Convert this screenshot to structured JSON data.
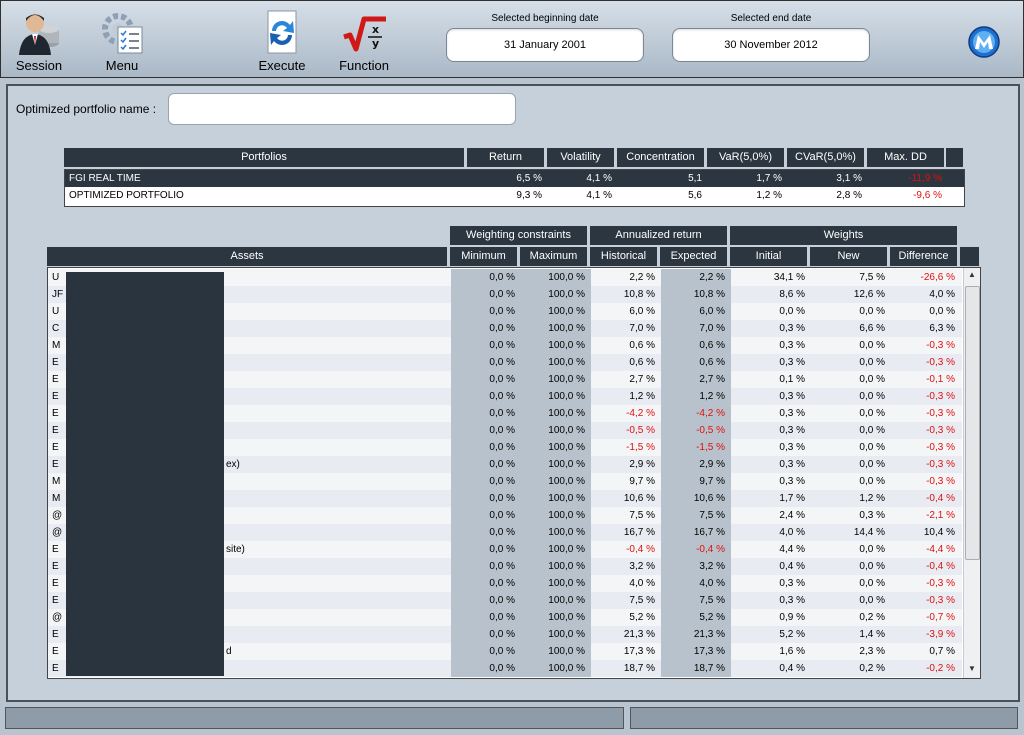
{
  "toolbar": {
    "session": {
      "label": "Session",
      "icon": "user-session-icon"
    },
    "menu": {
      "label": "Menu",
      "icon": "menu-gear-checklist-icon"
    },
    "execute": {
      "label": "Execute",
      "icon": "execute-refresh-icon"
    },
    "function": {
      "label": "Function",
      "icon": "function-sqrt-icon"
    },
    "begin_date_label": "Selected beginning date",
    "begin_date": "31 January 2001",
    "end_date_label": "Selected end date",
    "end_date": "30 November 2012",
    "logo_icon": "app-logo-icon"
  },
  "portfolio_name": {
    "label": "Optimized portfolio name :",
    "value": ""
  },
  "summary": {
    "headers": [
      "Portfolios",
      "Return",
      "Volatility",
      "Concentration",
      "VaR(5,0%)",
      "CVaR(5,0%)",
      "Max. DD"
    ],
    "rows": [
      {
        "name": "FGI REAL TIME",
        "values": [
          "6,5 %",
          "4,1 %",
          "5,1",
          "1,7 %",
          "3,1 %",
          "-11,9 %"
        ]
      },
      {
        "name": "OPTIMIZED PORTFOLIO",
        "values": [
          "9,3 %",
          "4,1 %",
          "5,6",
          "1,2 %",
          "2,8 %",
          "-9,6 %"
        ]
      }
    ]
  },
  "assets": {
    "group_headers": [
      "Weighting constraints",
      "Annualized return",
      "Weights"
    ],
    "headers": [
      "Assets",
      "Minimum",
      "Maximum",
      "Historical",
      "Expected",
      "Initial",
      "New",
      "Difference"
    ],
    "rows": [
      {
        "name": "U",
        "values": [
          "0,0 %",
          "100,0 %",
          "2,2 %",
          "2,2 %",
          "34,1 %",
          "7,5 %",
          "-26,6 %"
        ]
      },
      {
        "name": "JF",
        "values": [
          "0,0 %",
          "100,0 %",
          "10,8 %",
          "10,8 %",
          "8,6 %",
          "12,6 %",
          "4,0 %"
        ]
      },
      {
        "name": "U",
        "values": [
          "0,0 %",
          "100,0 %",
          "6,0 %",
          "6,0 %",
          "0,0 %",
          "0,0 %",
          "0,0 %"
        ]
      },
      {
        "name": "C",
        "values": [
          "0,0 %",
          "100,0 %",
          "7,0 %",
          "7,0 %",
          "0,3 %",
          "6,6 %",
          "6,3 %"
        ]
      },
      {
        "name": "M",
        "values": [
          "0,0 %",
          "100,0 %",
          "0,6 %",
          "0,6 %",
          "0,3 %",
          "0,0 %",
          "-0,3 %"
        ]
      },
      {
        "name": "E",
        "values": [
          "0,0 %",
          "100,0 %",
          "0,6 %",
          "0,6 %",
          "0,3 %",
          "0,0 %",
          "-0,3 %"
        ]
      },
      {
        "name": "E",
        "values": [
          "0,0 %",
          "100,0 %",
          "2,7 %",
          "2,7 %",
          "0,1 %",
          "0,0 %",
          "-0,1 %"
        ]
      },
      {
        "name": "E",
        "values": [
          "0,0 %",
          "100,0 %",
          "1,2 %",
          "1,2 %",
          "0,3 %",
          "0,0 %",
          "-0,3 %"
        ]
      },
      {
        "name": "E",
        "values": [
          "0,0 %",
          "100,0 %",
          "-4,2 %",
          "-4,2 %",
          "0,3 %",
          "0,0 %",
          "-0,3 %"
        ]
      },
      {
        "name": "E",
        "values": [
          "0,0 %",
          "100,0 %",
          "-0,5 %",
          "-0,5 %",
          "0,3 %",
          "0,0 %",
          "-0,3 %"
        ]
      },
      {
        "name": "E",
        "values": [
          "0,0 %",
          "100,0 %",
          "-1,5 %",
          "-1,5 %",
          "0,3 %",
          "0,0 %",
          "-0,3 %"
        ]
      },
      {
        "name": "E",
        "suffix": "ex)",
        "values": [
          "0,0 %",
          "100,0 %",
          "2,9 %",
          "2,9 %",
          "0,3 %",
          "0,0 %",
          "-0,3 %"
        ]
      },
      {
        "name": "M",
        "values": [
          "0,0 %",
          "100,0 %",
          "9,7 %",
          "9,7 %",
          "0,3 %",
          "0,0 %",
          "-0,3 %"
        ]
      },
      {
        "name": "M",
        "values": [
          "0,0 %",
          "100,0 %",
          "10,6 %",
          "10,6 %",
          "1,7 %",
          "1,2 %",
          "-0,4 %"
        ]
      },
      {
        "name": "@",
        "values": [
          "0,0 %",
          "100,0 %",
          "7,5 %",
          "7,5 %",
          "2,4 %",
          "0,3 %",
          "-2,1 %"
        ]
      },
      {
        "name": "@",
        "values": [
          "0,0 %",
          "100,0 %",
          "16,7 %",
          "16,7 %",
          "4,0 %",
          "14,4 %",
          "10,4 %"
        ]
      },
      {
        "name": "E",
        "suffix": "site)",
        "values": [
          "0,0 %",
          "100,0 %",
          "-0,4 %",
          "-0,4 %",
          "4,4 %",
          "0,0 %",
          "-4,4 %"
        ]
      },
      {
        "name": "E",
        "values": [
          "0,0 %",
          "100,0 %",
          "3,2 %",
          "3,2 %",
          "0,4 %",
          "0,0 %",
          "-0,4 %"
        ]
      },
      {
        "name": "E",
        "values": [
          "0,0 %",
          "100,0 %",
          "4,0 %",
          "4,0 %",
          "0,3 %",
          "0,0 %",
          "-0,3 %"
        ]
      },
      {
        "name": "E",
        "values": [
          "0,0 %",
          "100,0 %",
          "7,5 %",
          "7,5 %",
          "0,3 %",
          "0,0 %",
          "-0,3 %"
        ]
      },
      {
        "name": "@",
        "values": [
          "0,0 %",
          "100,0 %",
          "5,2 %",
          "5,2 %",
          "0,9 %",
          "0,2 %",
          "-0,7 %"
        ]
      },
      {
        "name": "E",
        "values": [
          "0,0 %",
          "100,0 %",
          "21,3 %",
          "21,3 %",
          "5,2 %",
          "1,4 %",
          "-3,9 %"
        ]
      },
      {
        "name": "E",
        "suffix": "d",
        "values": [
          "0,0 %",
          "100,0 %",
          "17,3 %",
          "17,3 %",
          "1,6 %",
          "2,3 %",
          "0,7 %"
        ]
      },
      {
        "name": "E",
        "values": [
          "0,0 %",
          "100,0 %",
          "18,7 %",
          "18,7 %",
          "0,4 %",
          "0,2 %",
          "-0,2 %"
        ]
      }
    ]
  },
  "colors": {
    "header_bg": "#2b3640",
    "negative": "#e01010",
    "constraint_bg": "#b8c2cc"
  }
}
